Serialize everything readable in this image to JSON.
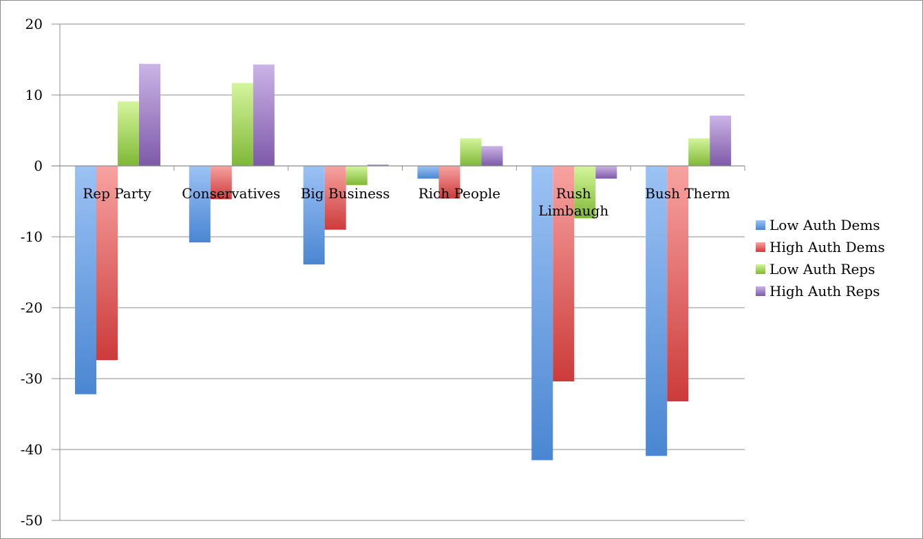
{
  "chart_data": {
    "type": "bar",
    "title": "",
    "xlabel": "",
    "ylabel": "",
    "ylim": [
      -50,
      20
    ],
    "yticks": [
      20,
      10,
      0,
      -10,
      -20,
      -30,
      -40,
      -50
    ],
    "grid": true,
    "legend_position": "right",
    "categories": [
      [
        "Rep Party"
      ],
      [
        "Conservatives"
      ],
      [
        "Big Business"
      ],
      [
        "Rich People"
      ],
      [
        "Rush",
        "Limbaugh"
      ],
      [
        "Bush Therm"
      ]
    ],
    "series": [
      {
        "name": "Low Auth Dems",
        "color": "#4a86d2",
        "color_light": "#9cc2f4",
        "values": [
          -32.2,
          -10.8,
          -13.9,
          -1.8,
          -41.5,
          -40.9
        ]
      },
      {
        "name": "High Auth Dems",
        "color": "#cc3b3b",
        "color_light": "#f7a3a1",
        "values": [
          -27.4,
          -4.7,
          -9.0,
          -4.6,
          -30.4,
          -33.2
        ]
      },
      {
        "name": "Low Auth Reps",
        "color": "#7fb836",
        "color_light": "#d4f59c",
        "values": [
          9.1,
          11.7,
          -2.7,
          3.9,
          -7.4,
          3.9
        ]
      },
      {
        "name": "High Auth Reps",
        "color": "#7d5aa8",
        "color_light": "#cbb4e6",
        "values": [
          14.4,
          14.3,
          0.2,
          2.8,
          -1.8,
          7.1
        ]
      }
    ]
  }
}
